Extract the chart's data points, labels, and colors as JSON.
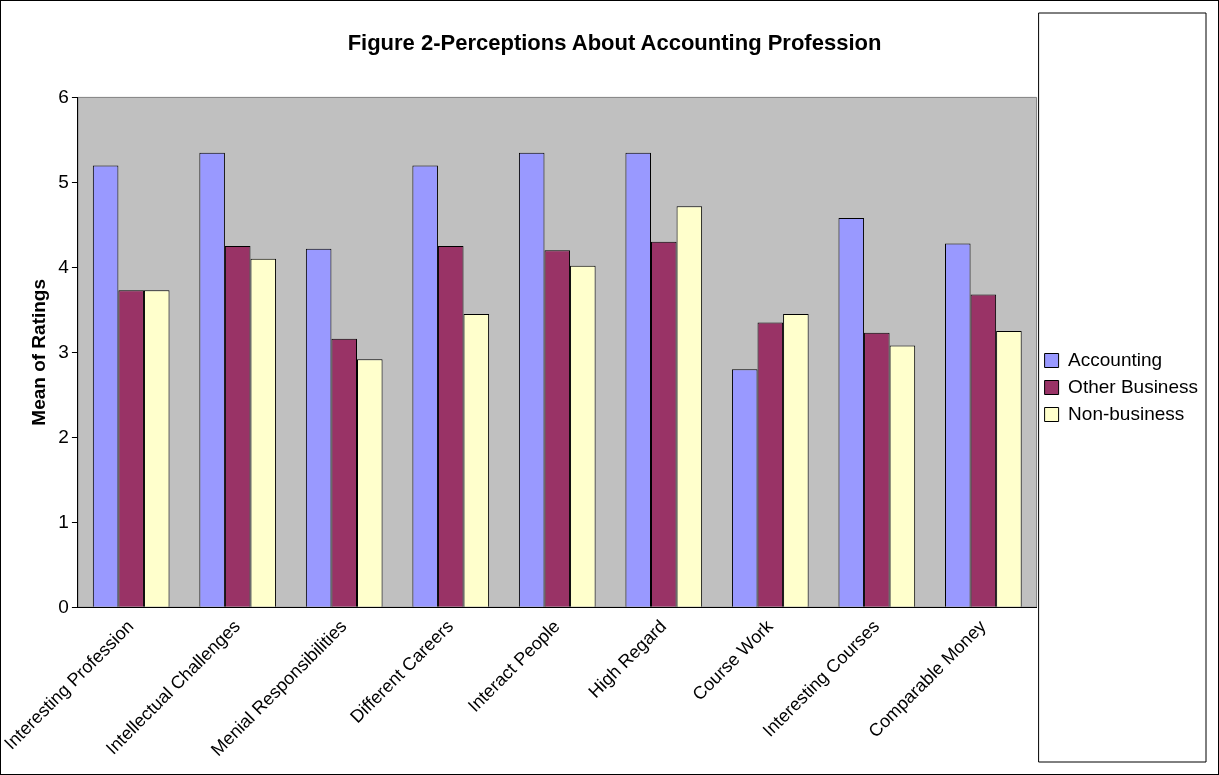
{
  "chart_data": {
    "type": "bar",
    "title": "Figure 2-Perceptions About Accounting Profession",
    "ylabel": "Mean of Ratings",
    "categories": [
      "Interesting Profession",
      "Intellectual Challenges",
      "Menial Responsibilities",
      "Different Careers",
      "Interact People",
      "High Regard",
      "Course Work",
      "Interesting Courses",
      "Comparable Money"
    ],
    "series": [
      {
        "name": "Accounting",
        "color": "#9999ff",
        "values": [
          5.2,
          5.35,
          4.22,
          5.2,
          5.35,
          5.35,
          2.8,
          4.58,
          4.28
        ]
      },
      {
        "name": "Other Business",
        "color": "#993366",
        "values": [
          3.73,
          4.25,
          3.16,
          4.25,
          4.2,
          4.3,
          3.35,
          3.23,
          3.68
        ]
      },
      {
        "name": "Non-business",
        "color": "#ffffcc",
        "values": [
          3.73,
          4.1,
          2.92,
          3.45,
          4.02,
          4.72,
          3.45,
          3.08,
          3.25
        ]
      }
    ],
    "ylim": [
      0,
      6
    ],
    "yticks": [
      0,
      1,
      2,
      3,
      4,
      5,
      6
    ],
    "grid": false,
    "legend": "right"
  }
}
